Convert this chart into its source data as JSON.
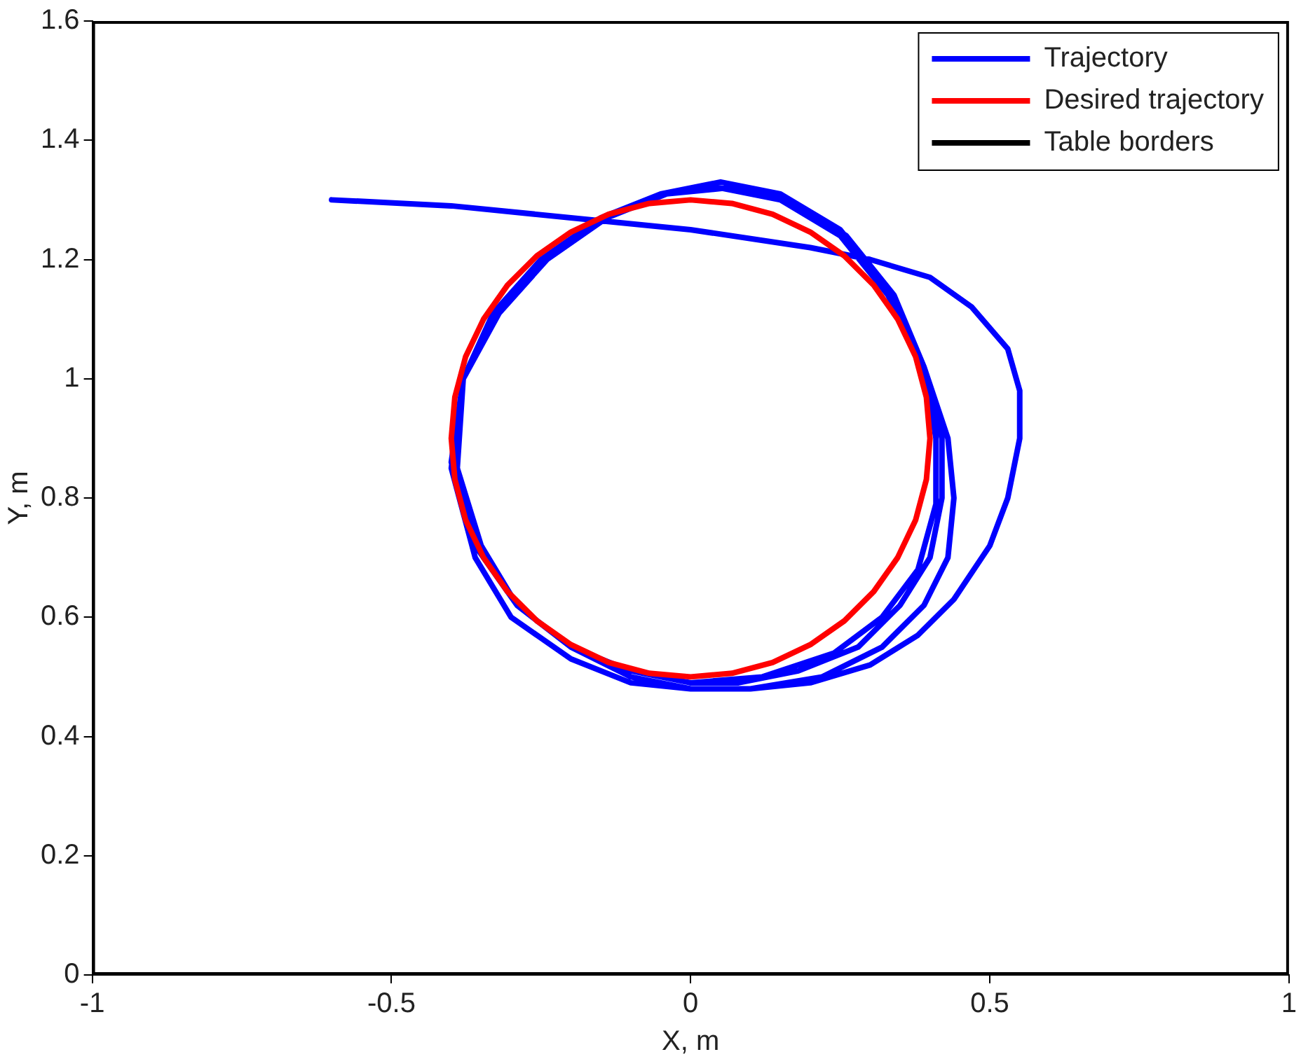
{
  "chart_data": {
    "type": "line",
    "xlabel": "X, m",
    "ylabel": "Y, m",
    "xlim": [
      -1,
      1
    ],
    "xticks": [
      -1,
      -0.5,
      0,
      0.5,
      1
    ],
    "ylim": [
      0,
      1.6
    ],
    "yticks": [
      0,
      0.2,
      0.4,
      0.6,
      0.8,
      1,
      1.2,
      1.4,
      1.6
    ],
    "grid": false,
    "legend": "top right",
    "marker": "none",
    "line_style": "solid",
    "series": [
      {
        "name": "Trajectory",
        "color": "#0000ff",
        "x": [
          -0.6,
          -0.4,
          -0.2,
          0,
          0.2,
          0.3,
          0.4,
          0.47,
          0.53,
          0.55,
          0.55,
          0.53,
          0.5,
          0.44,
          0.38,
          0.3,
          0.2,
          0.1,
          0,
          -0.1,
          -0.2,
          -0.3,
          -0.36,
          -0.4,
          -0.38,
          -0.33,
          -0.25,
          -0.15,
          -0.05,
          0.05,
          0.15,
          0.25,
          0.33,
          0.39,
          0.43,
          0.44,
          0.43,
          0.39,
          0.32,
          0.22,
          0.1,
          0,
          -0.1,
          -0.2,
          -0.29,
          -0.35,
          -0.39,
          -0.38,
          -0.33,
          -0.25,
          -0.15,
          -0.05,
          0.05,
          0.15,
          0.25,
          0.33,
          0.39,
          0.42,
          0.42,
          0.4,
          0.35,
          0.28,
          0.18,
          0.08,
          0,
          -0.1,
          -0.2,
          -0.29,
          -0.36,
          -0.4,
          -0.38,
          -0.32,
          -0.24,
          -0.14,
          -0.04,
          0.06,
          0.16,
          0.26,
          0.34,
          0.39,
          0.41,
          0.41,
          0.38,
          0.32,
          0.24,
          0.12,
          0
        ],
        "values": [
          1.3,
          1.29,
          1.27,
          1.25,
          1.22,
          1.2,
          1.17,
          1.12,
          1.05,
          0.98,
          0.9,
          0.8,
          0.72,
          0.63,
          0.57,
          0.52,
          0.49,
          0.48,
          0.48,
          0.49,
          0.53,
          0.6,
          0.7,
          0.85,
          1.0,
          1.1,
          1.2,
          1.27,
          1.31,
          1.33,
          1.31,
          1.25,
          1.15,
          1.02,
          0.9,
          0.8,
          0.7,
          0.62,
          0.55,
          0.5,
          0.48,
          0.48,
          0.5,
          0.55,
          0.62,
          0.72,
          0.85,
          1.0,
          1.11,
          1.2,
          1.27,
          1.31,
          1.32,
          1.3,
          1.24,
          1.14,
          1.01,
          0.9,
          0.8,
          0.7,
          0.62,
          0.55,
          0.51,
          0.49,
          0.49,
          0.51,
          0.55,
          0.62,
          0.72,
          0.86,
          1.0,
          1.11,
          1.2,
          1.27,
          1.31,
          1.32,
          1.3,
          1.24,
          1.14,
          1.02,
          0.9,
          0.79,
          0.68,
          0.6,
          0.54,
          0.5,
          0.49
        ]
      },
      {
        "name": "Desired trajectory",
        "color": "#ff0000",
        "x": [
          0.4,
          0.394,
          0.376,
          0.346,
          0.306,
          0.257,
          0.2,
          0.137,
          0.069,
          0,
          -0.069,
          -0.137,
          -0.2,
          -0.257,
          -0.306,
          -0.346,
          -0.376,
          -0.394,
          -0.4,
          -0.394,
          -0.376,
          -0.346,
          -0.306,
          -0.257,
          -0.2,
          -0.137,
          -0.069,
          0,
          0.069,
          0.137,
          0.2,
          0.257,
          0.306,
          0.346,
          0.376,
          0.394,
          0.4,
          0.394
        ],
        "values": [
          0.9,
          0.969,
          1.037,
          1.1,
          1.157,
          1.206,
          1.246,
          1.276,
          1.294,
          1.3,
          1.294,
          1.276,
          1.246,
          1.206,
          1.157,
          1.1,
          1.037,
          0.969,
          0.9,
          0.831,
          0.763,
          0.7,
          0.643,
          0.594,
          0.554,
          0.524,
          0.506,
          0.5,
          0.506,
          0.524,
          0.554,
          0.594,
          0.643,
          0.7,
          0.763,
          0.831,
          0.9,
          0.969
        ]
      },
      {
        "name": "Table borders",
        "color": "#000000",
        "x": [
          -1,
          -1,
          1,
          1,
          -1,
          -1
        ],
        "values": [
          0,
          1.6,
          1.6,
          0,
          0,
          0.8
        ]
      }
    ]
  }
}
